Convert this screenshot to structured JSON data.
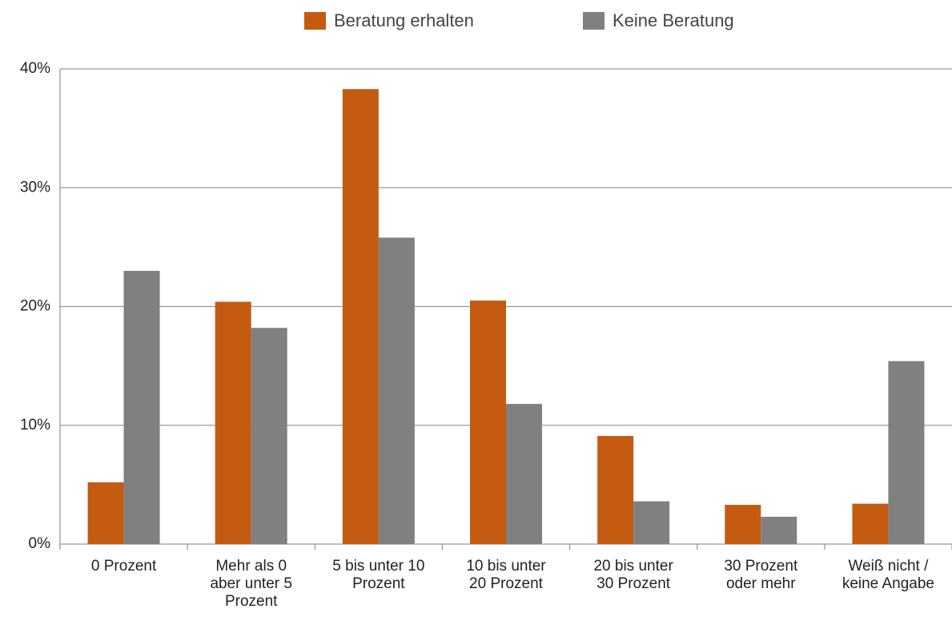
{
  "chart_data": {
    "type": "bar",
    "categories": [
      "0 Prozent",
      "Mehr als 0 aber unter 5 Prozent",
      "5 bis unter 10 Prozent",
      "10 bis unter 20 Prozent",
      "20 bis unter 30 Prozent",
      "30 Prozent oder mehr",
      "Weiß nicht / keine Angabe"
    ],
    "series": [
      {
        "name": "Beratung erhalten",
        "color": "#c55a11",
        "values": [
          5.2,
          20.4,
          38.3,
          20.5,
          9.1,
          3.3,
          3.4
        ]
      },
      {
        "name": "Keine Beratung",
        "color": "#808080",
        "values": [
          23.0,
          18.2,
          25.8,
          11.8,
          3.6,
          2.3,
          15.4
        ]
      }
    ],
    "ylim": [
      0,
      40
    ],
    "yticks": [
      {
        "value": 0,
        "label": "0%"
      },
      {
        "value": 10,
        "label": "10%"
      },
      {
        "value": 20,
        "label": "20%"
      },
      {
        "value": 30,
        "label": "30%"
      },
      {
        "value": 40,
        "label": "40%"
      }
    ],
    "grid": true,
    "legend": "top"
  }
}
